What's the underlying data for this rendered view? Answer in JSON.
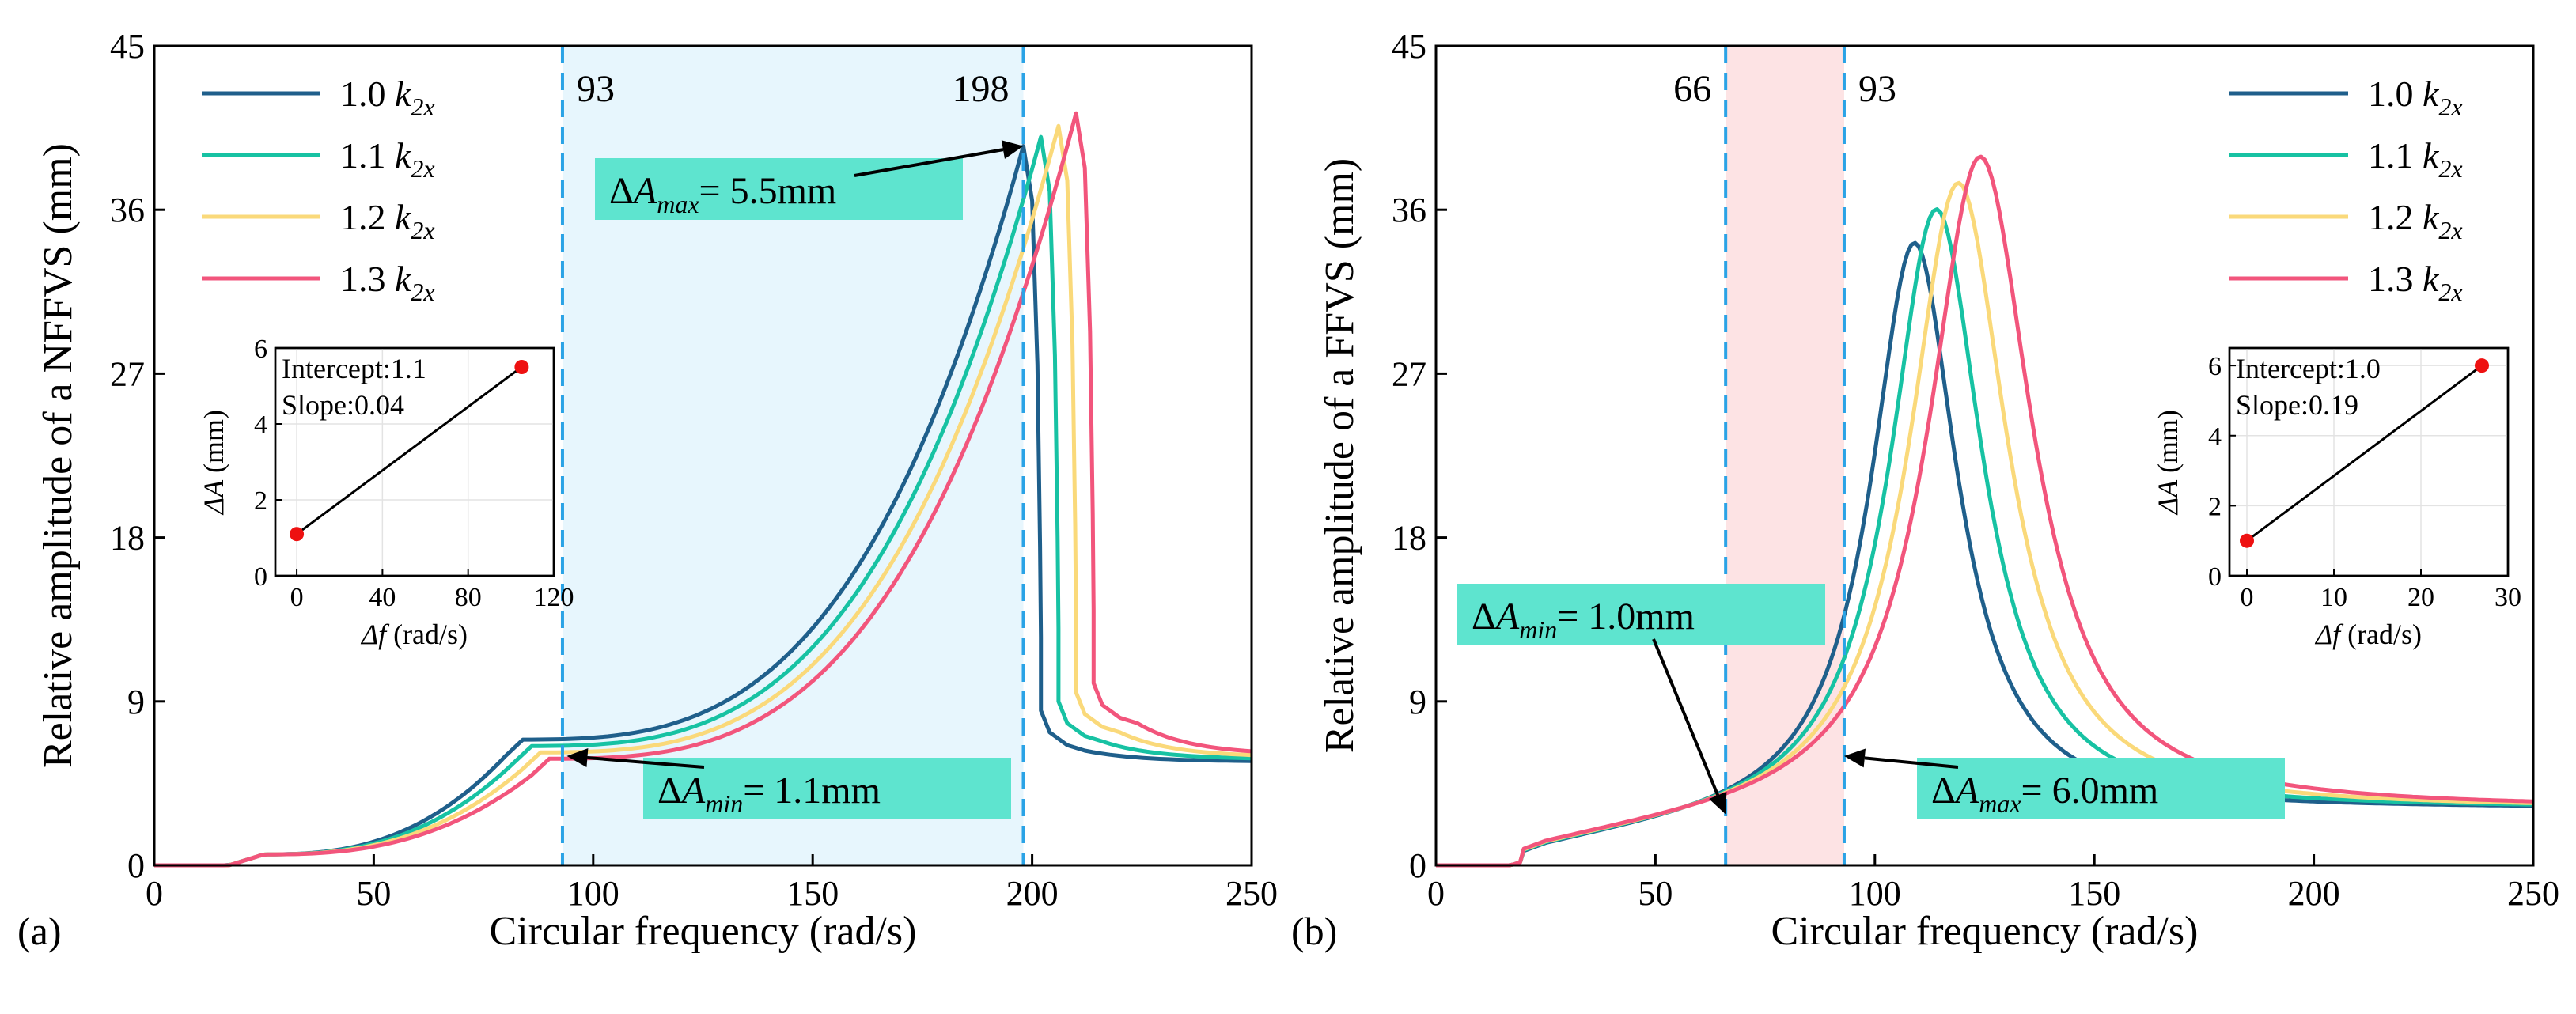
{
  "chart_data": [
    {
      "type": "line",
      "panel_label": "(a)",
      "xlabel": "Circular frequency (rad/s)",
      "ylabel": "Relative amplitude of a NFFVS (mm)",
      "xlim": [
        0,
        250
      ],
      "ylim": [
        0,
        45
      ],
      "xticks": [
        "0",
        "50",
        "100",
        "150",
        "200",
        "250"
      ],
      "yticks": [
        "0",
        "9",
        "18",
        "27",
        "36",
        "45"
      ],
      "legend": {
        "position": "top-left",
        "entries": [
          {
            "coef": "1.0",
            "symbol": "k",
            "sub": "2x",
            "color": "#1f5f8b"
          },
          {
            "coef": "1.1",
            "symbol": "k",
            "sub": "2x",
            "color": "#17c2a3"
          },
          {
            "coef": "1.2",
            "symbol": "k",
            "sub": "2x",
            "color": "#fad97a"
          },
          {
            "coef": "1.3",
            "symbol": "k",
            "sub": "2x",
            "color": "#f2557c"
          }
        ]
      },
      "shaded_region": {
        "x": [
          93,
          198
        ],
        "color": "#e7f6fd"
      },
      "vlines": [
        {
          "x": 93,
          "label": "93"
        },
        {
          "x": 198,
          "label": "198"
        }
      ],
      "annotations": [
        {
          "pre": "ΔA",
          "sub": "max",
          "post": "= 5.5mm",
          "target": [
            198,
            39.5
          ]
        },
        {
          "pre": "ΔA",
          "sub": "min",
          "post": "= 1.1mm",
          "target": [
            94,
            6.0
          ]
        }
      ],
      "series": [
        {
          "name": "1.0 k2x",
          "peak_x": 198,
          "peak_y": 39.5,
          "drop_y": 8.5
        },
        {
          "name": "1.1 k2x",
          "peak_x": 202,
          "peak_y": 40.0,
          "drop_y": 9.0
        },
        {
          "name": "1.2 k2x",
          "peak_x": 206,
          "peak_y": 40.6,
          "drop_y": 9.5
        },
        {
          "name": "1.3 k2x",
          "peak_x": 210,
          "peak_y": 41.3,
          "drop_y": 10.0
        }
      ],
      "inset": {
        "text1": "Intercept:1.1",
        "text2": "Slope:0.04",
        "xlabel": "Δf (rad/s)",
        "ylabel": "ΔA (mm)",
        "xlim": [
          -10,
          120
        ],
        "ylim": [
          0,
          6
        ],
        "xticks": [
          "0",
          "40",
          "80",
          "120"
        ],
        "yticks": [
          "0",
          "2",
          "4",
          "6"
        ],
        "points": [
          [
            0,
            1.1
          ],
          [
            105,
            5.5
          ]
        ]
      }
    },
    {
      "type": "line",
      "panel_label": "(b)",
      "xlabel": "Circular frequency (rad/s)",
      "ylabel": "Relative amplitude of a FFVS (mm)",
      "xlim": [
        0,
        250
      ],
      "ylim": [
        0,
        45
      ],
      "xticks": [
        "0",
        "50",
        "100",
        "150",
        "200",
        "250"
      ],
      "yticks": [
        "0",
        "9",
        "18",
        "27",
        "36",
        "45"
      ],
      "legend": {
        "position": "top-right",
        "entries": [
          {
            "coef": "1.0",
            "symbol": "k",
            "sub": "2x",
            "color": "#1f5f8b"
          },
          {
            "coef": "1.1",
            "symbol": "k",
            "sub": "2x",
            "color": "#17c2a3"
          },
          {
            "coef": "1.2",
            "symbol": "k",
            "sub": "2x",
            "color": "#fad97a"
          },
          {
            "coef": "1.3",
            "symbol": "k",
            "sub": "2x",
            "color": "#f2557c"
          }
        ]
      },
      "shaded_region": {
        "x": [
          66,
          93
        ],
        "color": "#fde3e4"
      },
      "vlines": [
        {
          "x": 66,
          "label": "66"
        },
        {
          "x": 93,
          "label": "93"
        }
      ],
      "annotations": [
        {
          "pre": "ΔA",
          "sub": "min",
          "post": "= 1.0mm",
          "target": [
            66,
            2.8
          ]
        },
        {
          "pre": "ΔA",
          "sub": "max",
          "post": "= 6.0mm",
          "target": [
            93,
            6.0
          ]
        }
      ],
      "series": [
        {
          "name": "1.0 k2x",
          "peak_x": 109,
          "peak_y": 36.2
        },
        {
          "name": "1.1 k2x",
          "peak_x": 114,
          "peak_y": 38.0
        },
        {
          "name": "1.2 k2x",
          "peak_x": 119,
          "peak_y": 39.4
        },
        {
          "name": "1.3 k2x",
          "peak_x": 124,
          "peak_y": 40.8
        }
      ],
      "inset": {
        "text1": "Intercept:1.0",
        "text2": "Slope:0.19",
        "xlabel": "Δf (rad/s)",
        "ylabel": "ΔA (mm)",
        "xlim": [
          -2,
          30
        ],
        "ylim": [
          0,
          6.5
        ],
        "xticks": [
          "0",
          "10",
          "20",
          "30"
        ],
        "yticks": [
          "0",
          "2",
          "4",
          "6"
        ],
        "points": [
          [
            0,
            1.0
          ],
          [
            27,
            6.0
          ]
        ]
      }
    }
  ]
}
